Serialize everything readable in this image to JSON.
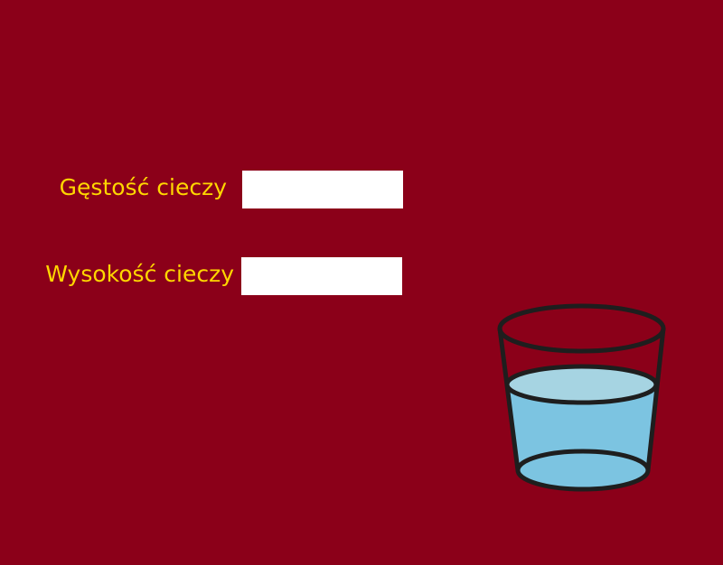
{
  "colors": {
    "background": "#8b0019",
    "label_text": "#ffd700",
    "input_background": "#ffffff",
    "water_side": "#7cc4e1",
    "water_surface": "#a6d4e2",
    "glass_outline": "#1e1e1e"
  },
  "form": {
    "density": {
      "label": "Gęstość cieczy",
      "value": ""
    },
    "height": {
      "label": "Wysokość cieczy",
      "value": ""
    }
  },
  "illustration": {
    "icon": "glass-of-water-icon",
    "fill_level": 0.56
  }
}
